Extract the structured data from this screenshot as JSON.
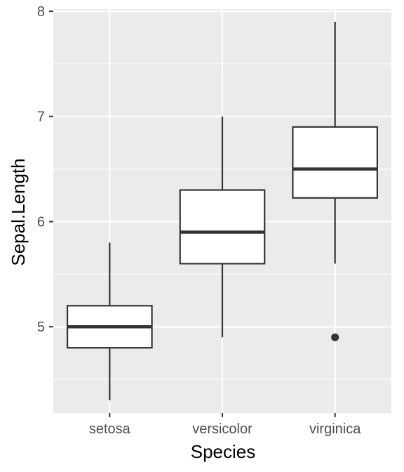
{
  "chart_data": {
    "type": "boxplot",
    "title": "",
    "xlabel": "Species",
    "ylabel": "Sepal.Length",
    "categories": [
      "setosa",
      "versicolor",
      "virginica"
    ],
    "boxes": [
      {
        "category": "setosa",
        "whisker_low": 4.3,
        "q1": 4.8,
        "median": 5.0,
        "q3": 5.2,
        "whisker_high": 5.8,
        "outliers": []
      },
      {
        "category": "versicolor",
        "whisker_low": 4.9,
        "q1": 5.6,
        "median": 5.9,
        "q3": 6.3,
        "whisker_high": 7.0,
        "outliers": []
      },
      {
        "category": "virginica",
        "whisker_low": 5.6,
        "q1": 6.225,
        "median": 6.5,
        "q3": 6.9,
        "whisker_high": 7.9,
        "outliers": [
          4.9
        ]
      }
    ],
    "yticks": [
      5,
      6,
      7,
      8
    ],
    "ylim": [
      4.18,
      8.02
    ],
    "grid": true,
    "legend": "none",
    "colors": {
      "panel_background": "#ebebeb",
      "grid": "#ffffff",
      "box_fill": "#ffffff",
      "box_stroke": "#333333",
      "tick_text": "#4d4d4d",
      "axis_title": "#000000"
    }
  }
}
